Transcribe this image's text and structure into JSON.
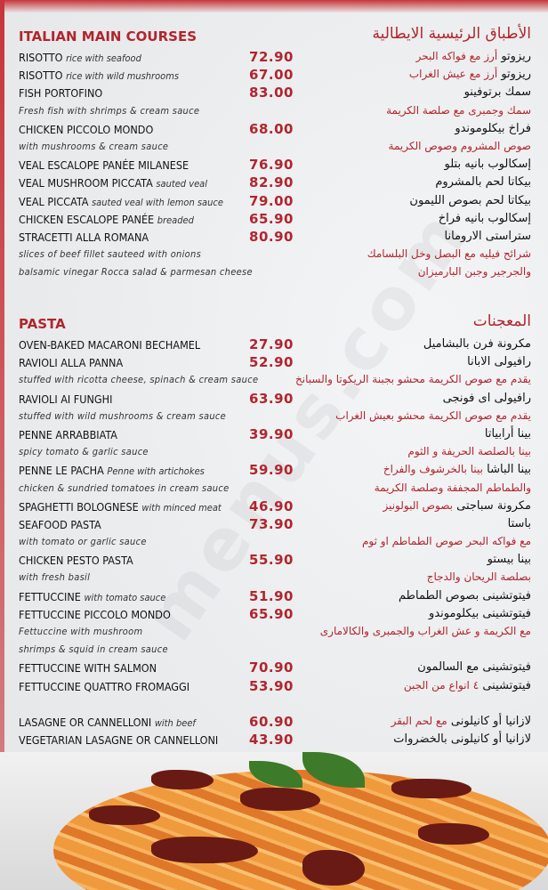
{
  "colors": {
    "accent": "#b1252d",
    "text": "#111111",
    "background": "#eceef0"
  },
  "sections": [
    {
      "title_en": "ITALIAN MAIN COURSES",
      "title_ar": "الأطباق الرئيسية الايطالية",
      "rows": [
        {
          "name": "RISOTTO",
          "desc": "rice with seafood",
          "price": "72.90",
          "ar": "ريزوتو",
          "ar_red": "أرز مع فواكه البحر"
        },
        {
          "name": "RISOTTO",
          "desc": "rice with wild mushrooms",
          "price": "67.00",
          "ar": "ريزوتو",
          "ar_red": "أرز مع عيش الغراب"
        },
        {
          "name": "FISH PORTOFINO",
          "price": "83.00",
          "ar": "سمك برتوفينو"
        },
        {
          "line": "Fresh fish with shrimps & cream sauce",
          "ar_red": "سمك وجمبرى مع صلصة الكريمة"
        },
        {
          "name": "CHICKEN PICCOLO MONDO",
          "price": "68.00",
          "ar": "فراخ بيكلوموندو"
        },
        {
          "line": "with mushrooms & cream sauce",
          "ar_red": "صوص المشروم وصوص الكريمة"
        },
        {
          "name": "VEAL ESCALOPE PANÉE MILANESE",
          "price": "76.90",
          "ar": "إسكالوب بانيه بتلو"
        },
        {
          "name": "VEAL MUSHROOM PICCATA",
          "desc": "sauted veal",
          "price": "82.90",
          "ar": "بيكاتا لحم بالمشروم"
        },
        {
          "name": "VEAL PICCATA",
          "desc": "sauted veal with lemon sauce",
          "price": "79.00",
          "ar": "بيكاتا لحم بصوص الليمون"
        },
        {
          "name": "CHICKEN ESCALOPE PANÉE",
          "desc": "breaded",
          "price": "65.90",
          "ar": "إسكالوب بانيه فراخ"
        },
        {
          "name": "STRACETTI ALLA ROMANA",
          "price": "80.90",
          "ar": "ستراستى الارومانا"
        },
        {
          "line": "slices of beef fillet sauteed with onions",
          "ar_red": "شرائح فيليه مع البصل وخل البلسامك"
        },
        {
          "line": "balsamic vinegar Rocca salad & parmesan cheese",
          "ar_red": "والجرجير وجبن البارميزان"
        }
      ]
    },
    {
      "title_en": "PASTA",
      "title_ar": "المعجنات",
      "rows": [
        {
          "name": "OVEN-BAKED MACARONI BECHAMEL",
          "price": "27.90",
          "ar": "مكرونة فرن بالبشاميل"
        },
        {
          "name": "RAVIOLI ALLA PANNA",
          "price": "52.90",
          "ar": "رافيولى الابانا"
        },
        {
          "line": "stuffed with ricotta cheese, spinach & cream sauce",
          "ar_red": "يقدم مع صوص الكريمة محشو بجبنة الريكوتا والسبانخ"
        },
        {
          "name": "RAVIOLI AI FUNGHI",
          "price": "63.90",
          "ar": "رافيولى اى فونجى"
        },
        {
          "line": "stuffed with wild mushrooms & cream sauce",
          "ar_red": "يقدم مع صوص الكريمة محشو بعيش الغراب"
        },
        {
          "name": "PENNE ARRABBIATA",
          "price": "39.90",
          "ar": "بينا أرابياتا"
        },
        {
          "line": "spicy tomato & garlic sauce",
          "ar_red": "بينا بالصلصة الحريفة و الثوم"
        },
        {
          "name": "PENNE LE PACHA",
          "desc": "Penne with artichokes",
          "price": "59.90",
          "ar": "بينا الباشا",
          "ar_red": "بينا بالخرشوف والفراخ"
        },
        {
          "line": "chicken & sundried tomatoes in cream sauce",
          "ar_red": "والطماطم المجففة وصلصة الكريمة"
        },
        {
          "name": "SPAGHETTI BOLOGNESE",
          "desc": "with minced meat",
          "price": "46.90",
          "ar": "مكرونة سباجتى",
          "ar_red": "بصوص البولونيز"
        },
        {
          "name": "SEAFOOD PASTA",
          "price": "73.90",
          "ar": "باستا"
        },
        {
          "line": "with tomato or garlic sauce",
          "ar_red": "مع فواكه البحر صوص الطماطم او ثوم"
        },
        {
          "name": "CHICKEN PESTO PASTA",
          "price": "55.90",
          "ar": "بينا بيستو"
        },
        {
          "line": "with fresh basil",
          "ar_red": "بصلصة الريحان والدجاج"
        },
        {
          "name": "FETTUCCINE",
          "desc": "with tomato sauce",
          "price": "51.90",
          "ar": "فيتوتشينى بصوص الطماطم"
        },
        {
          "name": "FETTUCCINE PICCOLO MONDO",
          "price": "65.90",
          "ar": "فيتوتشينى بيكلوموندو"
        },
        {
          "line": "Fettuccine with mushroom",
          "ar_red": "مع الكريمة و عش الغراب والجمبرى والكالامارى"
        },
        {
          "line": " shrimps & squid in cream sauce"
        },
        {
          "name": "FETTUCCINE WITH SALMON",
          "price": "70.90",
          "ar": "فيتوتشينى مع السالمون"
        },
        {
          "name": "FETTUCCINE QUATTRO FROMAGGI",
          "price": "53.90",
          "ar": "فيتوتشينى",
          "ar_red": "٤ انواع من الجبن"
        },
        {
          "spacer": true
        },
        {
          "name": "LASAGNE OR CANNELLONI",
          "desc": "with beef",
          "price": "60.90",
          "ar": "لازانيا أو كانيلونى",
          "ar_red": "مع لحم البقر"
        },
        {
          "name": "VEGETARIAN LASAGNE OR CANNELLONI",
          "price": "43.90",
          "ar": "لازانيا أو كانيلونى بالخضروات"
        }
      ]
    }
  ]
}
